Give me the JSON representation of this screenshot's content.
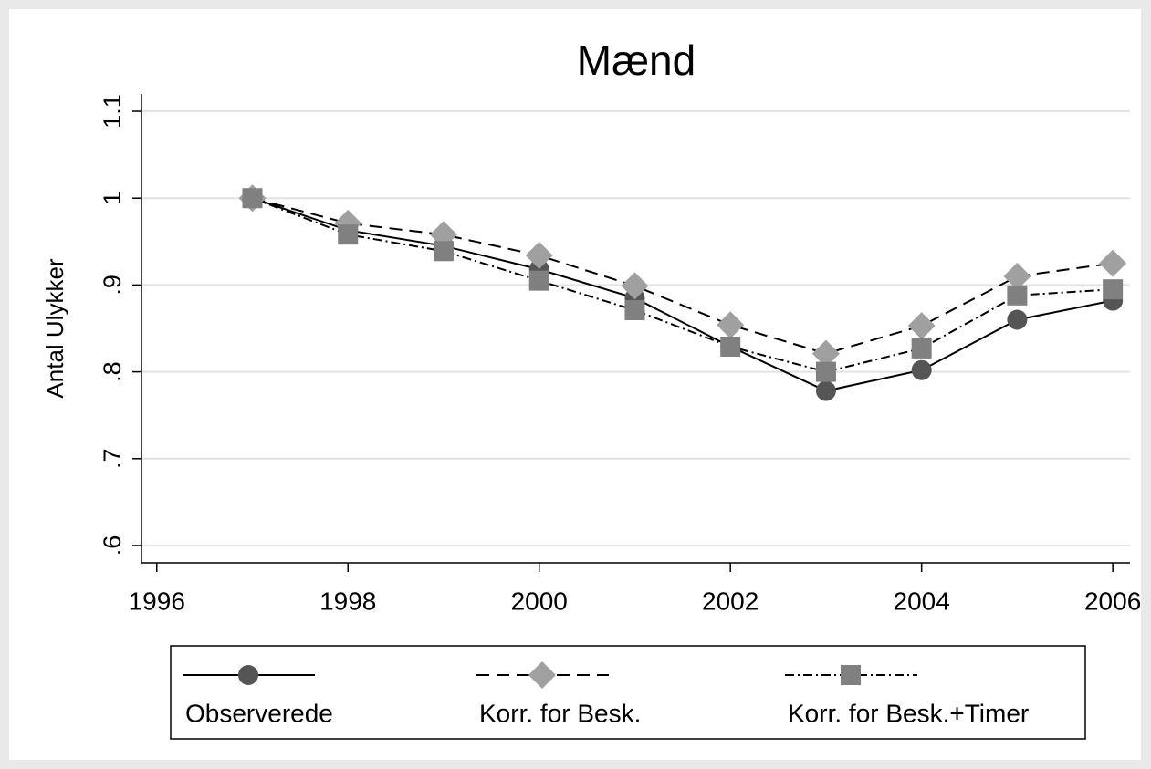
{
  "chart_data": {
    "type": "line",
    "title": "Mænd",
    "y_label": "Antal Ulykker",
    "x": [
      1997,
      1998,
      1999,
      2000,
      2001,
      2002,
      2003,
      2004,
      2005,
      2006
    ],
    "series": [
      {
        "name": "Observerede",
        "color": "#555555",
        "marker": "circle",
        "dash": "solid",
        "values": [
          1.0,
          0.963,
          0.945,
          0.918,
          0.885,
          0.829,
          0.778,
          0.802,
          0.86,
          0.882
        ]
      },
      {
        "name": "Korr. for Besk.",
        "color": "#a0a0a0",
        "marker": "diamond",
        "dash": "dashed",
        "values": [
          1.0,
          0.971,
          0.958,
          0.934,
          0.899,
          0.854,
          0.821,
          0.853,
          0.91,
          0.925
        ]
      },
      {
        "name": "Korr. for Besk.+Timer",
        "color": "#808080",
        "marker": "square",
        "dash": "dashdot",
        "values": [
          1.0,
          0.958,
          0.939,
          0.905,
          0.871,
          0.829,
          0.8,
          0.827,
          0.888,
          0.895
        ]
      }
    ],
    "xlim": [
      1995.84,
      2006.18
    ],
    "xticks": [
      1996,
      1998,
      2000,
      2002,
      2004,
      2006
    ],
    "ylim": [
      0.58,
      1.12
    ],
    "yticks": [
      {
        "value": 0.6,
        "label": ".6"
      },
      {
        "value": 0.7,
        "label": ".7"
      },
      {
        "value": 0.8,
        "label": ".8"
      },
      {
        "value": 0.9,
        "label": ".9"
      },
      1,
      1.1
    ],
    "grid": true,
    "legend": "bottom"
  }
}
